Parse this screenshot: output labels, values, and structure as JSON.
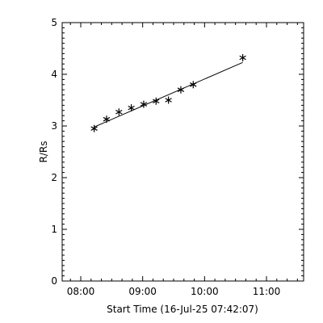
{
  "chart_data": {
    "type": "scatter",
    "xlabel": "Start Time (16-Jul-25 07:42:07)",
    "ylabel": "R/Rs",
    "x_ticks": [
      {
        "value": "08:00",
        "label": "08:00"
      },
      {
        "value": "09:00",
        "label": "09:00"
      },
      {
        "value": "10:00",
        "label": "10:00"
      },
      {
        "value": "11:00",
        "label": "11:00"
      }
    ],
    "y_ticks": [
      0,
      1,
      2,
      3,
      4,
      5
    ],
    "xlim": [
      "07:42",
      "11:36"
    ],
    "ylim": [
      0,
      5
    ],
    "marker": "asterisk",
    "points": [
      {
        "x": "08:13",
        "y": 2.95
      },
      {
        "x": "08:25",
        "y": 3.13
      },
      {
        "x": "08:37",
        "y": 3.27
      },
      {
        "x": "08:49",
        "y": 3.35
      },
      {
        "x": "09:01",
        "y": 3.42
      },
      {
        "x": "09:13",
        "y": 3.48
      },
      {
        "x": "09:25",
        "y": 3.5
      },
      {
        "x": "09:37",
        "y": 3.7
      },
      {
        "x": "09:49",
        "y": 3.8
      },
      {
        "x": "10:37",
        "y": 4.32
      }
    ],
    "fit_line": [
      {
        "x": "08:13",
        "y": 2.98
      },
      {
        "x": "10:37",
        "y": 4.23
      }
    ],
    "grid": false,
    "legend": "none",
    "color": "#000000"
  }
}
